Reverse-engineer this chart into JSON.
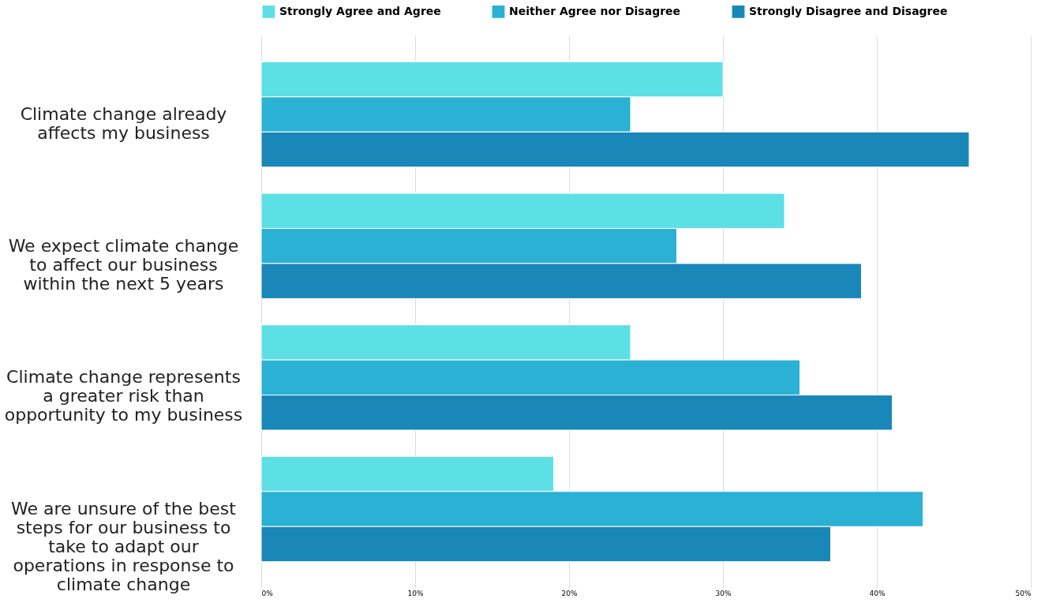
{
  "chart_data": {
    "type": "bar",
    "orientation": "horizontal",
    "categories": [
      "Climate change already affects my business",
      "We expect climate change to affect our business within the next 5 years",
      "Climate change represents a greater risk than opportunity to my business",
      "We are unsure of the best steps for our business to take to adapt our operations in response to climate change"
    ],
    "series": [
      {
        "name": "Strongly Agree and Agree",
        "color": "#5ce0e6",
        "values": [
          30,
          34,
          24,
          19
        ]
      },
      {
        "name": "Neither Agree nor Disagree",
        "color": "#2ab1d4",
        "values": [
          24,
          27,
          35,
          43
        ]
      },
      {
        "name": "Strongly Disagree and Disagree",
        "color": "#1987b8",
        "values": [
          46,
          39,
          41,
          37
        ]
      }
    ],
    "xlim": [
      0,
      50
    ],
    "xticks": [
      {
        "value": 0,
        "label": "0%"
      },
      {
        "value": 10,
        "label": "10%"
      },
      {
        "value": 20,
        "label": "20%"
      },
      {
        "value": 30,
        "label": "30%"
      },
      {
        "value": 40,
        "label": "40%"
      },
      {
        "value": 50,
        "label": "50%"
      }
    ],
    "grid": "x",
    "legend": "top"
  }
}
